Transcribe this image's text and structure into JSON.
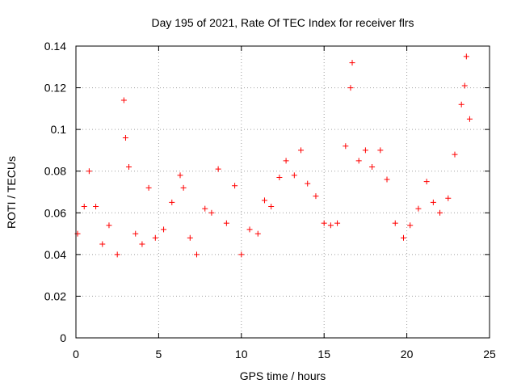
{
  "chart_data": {
    "type": "scatter",
    "title": "Day 195 of 2021, Rate Of TEC Index for receiver flrs",
    "xlabel": "GPS time / hours",
    "ylabel": "ROTI / TECUs",
    "xlim": [
      0,
      25
    ],
    "ylim": [
      0,
      0.14
    ],
    "x_ticks": [
      "0",
      "5",
      "10",
      "15",
      "20",
      "25"
    ],
    "y_ticks": [
      "0",
      "0.02",
      "0.04",
      "0.06",
      "0.08",
      "0.1",
      "0.12",
      "0.14"
    ],
    "grid": true,
    "marker": "plus",
    "color": "#ff0000",
    "series": [
      {
        "x": [
          0.1,
          0.5,
          0.8,
          1.2,
          1.6,
          2.0,
          2.5,
          2.9,
          3.0,
          3.2,
          3.6,
          4.0,
          4.4,
          4.8,
          5.3,
          5.8,
          6.3,
          6.5,
          6.9,
          7.3,
          7.8,
          8.2,
          8.6,
          9.1,
          9.6,
          10.0,
          10.5,
          11.0,
          11.4,
          11.8,
          12.3,
          12.7,
          13.2,
          13.6,
          14.0,
          14.5,
          15.0,
          15.4,
          15.8,
          16.3,
          16.6,
          16.7,
          17.1,
          17.5,
          17.9,
          18.4,
          18.8,
          19.3,
          19.8,
          20.2,
          20.7,
          21.2,
          21.6,
          22.0,
          22.5,
          22.9,
          23.3,
          23.5,
          23.6,
          23.8
        ],
        "y": [
          0.05,
          0.063,
          0.08,
          0.063,
          0.045,
          0.054,
          0.04,
          0.114,
          0.096,
          0.082,
          0.05,
          0.045,
          0.072,
          0.048,
          0.052,
          0.065,
          0.078,
          0.072,
          0.048,
          0.04,
          0.062,
          0.06,
          0.081,
          0.055,
          0.073,
          0.04,
          0.052,
          0.05,
          0.066,
          0.063,
          0.077,
          0.085,
          0.078,
          0.09,
          0.074,
          0.068,
          0.055,
          0.054,
          0.055,
          0.092,
          0.12,
          0.132,
          0.085,
          0.09,
          0.082,
          0.09,
          0.076,
          0.055,
          0.048,
          0.054,
          0.062,
          0.075,
          0.065,
          0.06,
          0.067,
          0.088,
          0.112,
          0.121,
          0.135,
          0.105
        ]
      }
    ]
  }
}
